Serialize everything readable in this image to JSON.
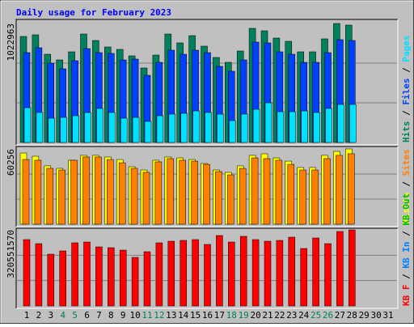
{
  "title": "Daily usage for February 2023",
  "categories": [
    1,
    2,
    3,
    4,
    5,
    6,
    7,
    8,
    9,
    10,
    11,
    12,
    13,
    14,
    15,
    16,
    17,
    18,
    19,
    20,
    21,
    22,
    23,
    24,
    25,
    26,
    27,
    28,
    29,
    30,
    31
  ],
  "category_colors": [
    "#000000",
    "#000000",
    "#000000",
    "#00805c",
    "#00805c",
    "#000000",
    "#000000",
    "#000000",
    "#000000",
    "#000000",
    "#00805c",
    "#00805c",
    "#000000",
    "#000000",
    "#000000",
    "#000000",
    "#000000",
    "#00805c",
    "#00805c",
    "#000000",
    "#000000",
    "#000000",
    "#000000",
    "#000000",
    "#00805c",
    "#00805c",
    "#000000",
    "#000000",
    "#000000",
    "#000000",
    "#000000"
  ],
  "separator": "/",
  "chart_data": [
    {
      "type": "bar",
      "ylim": [
        0,
        1022963
      ],
      "yticks": [
        1022963
      ],
      "series": [
        {
          "name": "Hits",
          "color": "#00805c",
          "values": [
            911600,
            925500,
            758500,
            709800,
            779400,
            932500,
            876800,
            821200,
            800300,
            744600,
            640200,
            751600,
            932500,
            856000,
            918600,
            828100,
            730700,
            688900,
            786400,
            981200,
            960300,
            897700,
            869900,
            779400,
            779400,
            890800,
            1022963,
            1009100,
            null,
            null,
            null
          ]
        },
        {
          "name": "Files",
          "color": "#0040ff",
          "values": [
            772400,
            814200,
            682000,
            633300,
            702900,
            807200,
            772400,
            765500,
            709800,
            716800,
            577600,
            688900,
            793300,
            758500,
            793300,
            772400,
            654100,
            612400,
            709800,
            862900,
            856000,
            779400,
            758500,
            688900,
            688900,
            772400,
            883800,
            876800,
            null,
            null,
            null
          ]
        },
        {
          "name": "Pages",
          "color": "#00e0ff",
          "values": [
            299200,
            257500,
            208800,
            215700,
            229600,
            257500,
            292300,
            257500,
            208800,
            215700,
            180900,
            229600,
            243600,
            250500,
            271400,
            257500,
            243600,
            187900,
            243600,
            285300,
            341000,
            264400,
            264400,
            271400,
            257500,
            292300,
            327100,
            327100,
            null,
            null,
            null
          ]
        }
      ]
    },
    {
      "type": "bar",
      "ylim": [
        0,
        60256
      ],
      "yticks": [
        60256
      ],
      "series": [
        {
          "name": "Visits",
          "color": "#ffff00",
          "values": [
            57000,
            54400,
            46700,
            44700,
            51200,
            55100,
            55100,
            53800,
            51800,
            46000,
            43400,
            51200,
            53800,
            53100,
            51800,
            48600,
            43400,
            41500,
            46700,
            55100,
            56400,
            53100,
            50500,
            45400,
            45400,
            55100,
            58300,
            60256,
            null,
            null,
            null
          ]
        },
        {
          "name": "Sites",
          "color": "#ff8000",
          "values": [
            51800,
            51200,
            44700,
            43400,
            51200,
            53800,
            53800,
            51800,
            49200,
            44700,
            41500,
            49900,
            52500,
            51200,
            50500,
            47900,
            42100,
            39500,
            44700,
            53100,
            52500,
            51200,
            47900,
            43400,
            43400,
            52500,
            55100,
            56400,
            null,
            null,
            null
          ]
        }
      ]
    },
    {
      "type": "bar",
      "ylim": [
        0,
        320551570
      ],
      "yticks": [
        320551570
      ],
      "series": [
        {
          "name": "KB F",
          "color": "#ff0000",
          "values": [
            279600000,
            262600000,
            218200000,
            231900000,
            266000000,
            269400000,
            248900000,
            245500000,
            235300000,
            204600000,
            228500000,
            266000000,
            272800000,
            276200000,
            279600000,
            259200000,
            296700000,
            269400000,
            293300000,
            279600000,
            272800000,
            276200000,
            289900000,
            242100000,
            286400000,
            262600000,
            313700000,
            320551570,
            null,
            null,
            null
          ]
        },
        {
          "name": "KB In",
          "color": "#0080ff",
          "values": []
        },
        {
          "name": "KB Out",
          "color": "#00c000",
          "values": []
        }
      ]
    }
  ]
}
